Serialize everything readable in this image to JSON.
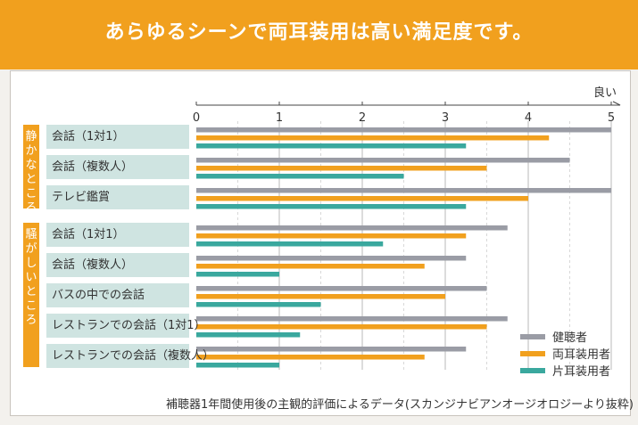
{
  "title": "あらゆるシーンで両耳装用は高い満足度です。",
  "footnote": "補聴器1年間使用後の主観的評価によるデータ(スカンジナビアンオージオロジーより抜粋)",
  "colors": {
    "banner": "#f1a01e",
    "normal_hearing": "#9a9ca5",
    "binaural": "#f1a01e",
    "monaural": "#3aa89e",
    "label_bg": "#cfe4e1"
  },
  "chart_data": {
    "type": "bar",
    "orientation": "horizontal",
    "axis_label": "良い",
    "xlim": [
      0,
      5
    ],
    "ticks": [
      "0",
      "1",
      "2",
      "3",
      "4",
      "5"
    ],
    "groups": [
      {
        "name": "静かなところ",
        "categories": [
          "会話（1対1）",
          "会話（複数人）",
          "テレビ鑑賞"
        ]
      },
      {
        "name": "騒がしいところ",
        "categories": [
          "会話（1対1）",
          "会話（複数人）",
          "バスの中での会話",
          "レストランでの会話（1対1）",
          "レストランでの会話（複数人）"
        ]
      }
    ],
    "categories": [
      "会話（1対1）",
      "会話（複数人）",
      "テレビ鑑賞",
      "会話（1対1）",
      "会話（複数人）",
      "バスの中での会話",
      "レストランでの会話（1対1）",
      "レストランでの会話（複数人）"
    ],
    "series": [
      {
        "name": "健聴者",
        "color": "#9a9ca5",
        "values": [
          5.0,
          4.5,
          5.0,
          3.75,
          3.25,
          3.5,
          3.75,
          3.25
        ]
      },
      {
        "name": "両耳装用者",
        "color": "#f1a01e",
        "values": [
          4.25,
          3.5,
          4.0,
          3.25,
          2.75,
          3.0,
          3.5,
          2.75
        ]
      },
      {
        "name": "片耳装用者",
        "color": "#3aa89e",
        "values": [
          3.25,
          2.5,
          3.25,
          2.25,
          1.0,
          1.5,
          1.25,
          1.0
        ]
      }
    ],
    "grid": true,
    "legend_position": "bottom-right"
  }
}
